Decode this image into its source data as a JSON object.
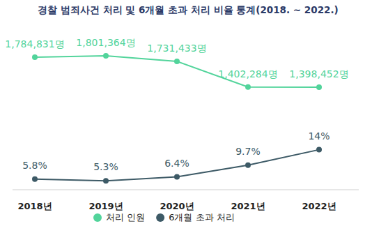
{
  "chart_data": {
    "type": "line",
    "title": "경찰 범죄사건 처리 및 6개월 초과 처리 비율 통계(2018. ~ 2022.)",
    "categories": [
      "2018년",
      "2019년",
      "2020년",
      "2021년",
      "2022년"
    ],
    "series": [
      {
        "name": "처리 인원",
        "color": "#52d49b",
        "marker": "circle",
        "values": [
          1784831,
          1801364,
          1731433,
          1402284,
          1398452
        ],
        "value_labels": [
          "1,784,831명",
          "1,801,364명",
          "1,731,433명",
          "1,402,284명",
          "1,398,452명"
        ]
      },
      {
        "name": "6개월 초과 처리",
        "color": "#3d5a66",
        "marker": "circle",
        "axis": "y2",
        "values": [
          5.8,
          5.3,
          6.4,
          9.7,
          14
        ],
        "value_labels": [
          "5.8%",
          "5.3%",
          "6.4%",
          "9.7%",
          "14%"
        ]
      }
    ],
    "ylim": [
      100000,
      2250000
    ],
    "y2lim": [
      3.2,
      50
    ],
    "tick_labels": "x",
    "data_labels": true,
    "legend": "bottom"
  }
}
